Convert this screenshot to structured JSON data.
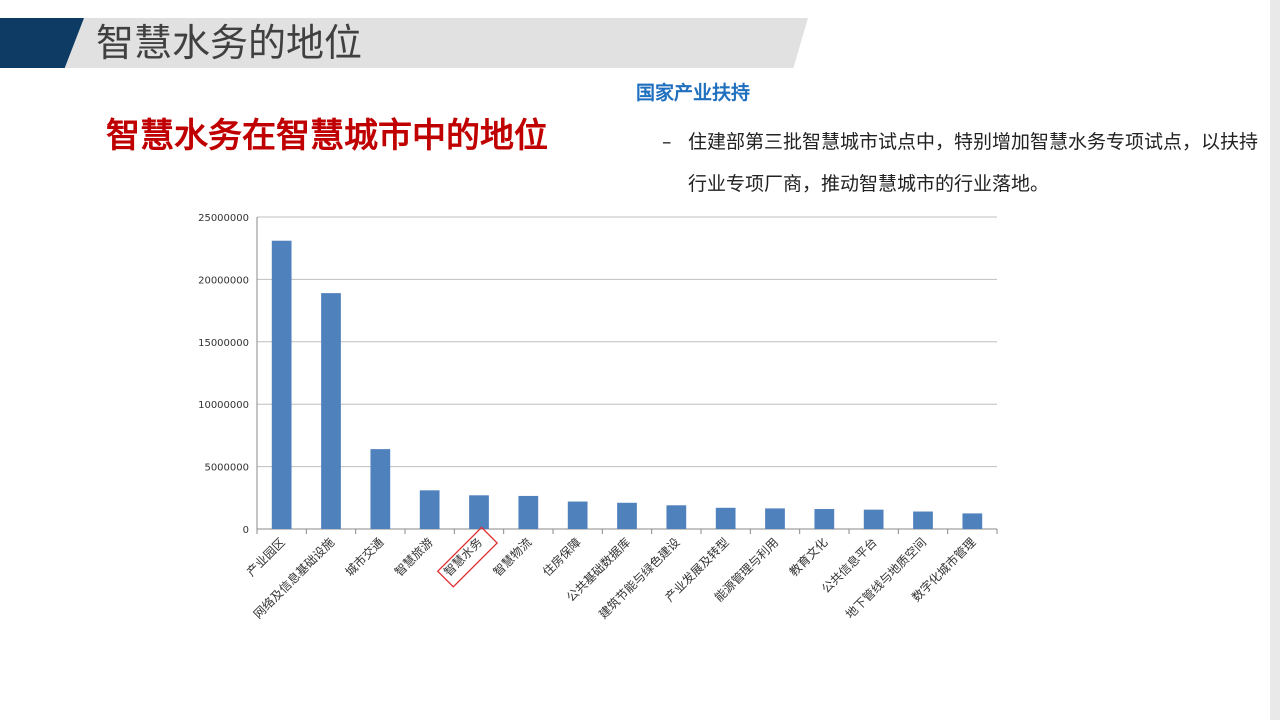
{
  "slide": {
    "title": "智慧水务的地位",
    "section_title": "智慧水务在智慧城市中的地位",
    "support_title": "国家产业扶持",
    "bullet_dash": "–",
    "bullet_text": "住建部第三批智慧城市试点中，特别增加智慧水务专项试点，以扶持行业专项厂商，推动智慧城市的行业落地。"
  },
  "colors": {
    "banner_blue": "#0d3b63",
    "banner_gray": "#e1e1e1",
    "section_title": "#c00000",
    "support_title": "#1f6fbf",
    "bar": "#4f81bd",
    "highlight_box": "#e03030"
  },
  "chart_data": {
    "type": "bar",
    "categories": [
      "产业园区",
      "网络及信息基础设施",
      "城市交通",
      "智慧旅游",
      "智慧水务",
      "智慧物流",
      "住房保障",
      "公共基础数据库",
      "建筑节能与绿色建设",
      "产业发展及转型",
      "能源管理与利用",
      "教育文化",
      "公共信息平台",
      "地下管线与地质空间",
      "数字化城市管理"
    ],
    "values": [
      23100000,
      18900000,
      6400000,
      3100000,
      2700000,
      2650000,
      2200000,
      2100000,
      1900000,
      1700000,
      1650000,
      1600000,
      1550000,
      1400000,
      1250000
    ],
    "ylim": [
      0,
      25000000
    ],
    "yticks": [
      "0",
      "5000000",
      "10000000",
      "15000000",
      "20000000",
      "25000000"
    ],
    "grid": true,
    "highlighted_category": "智慧水务"
  }
}
